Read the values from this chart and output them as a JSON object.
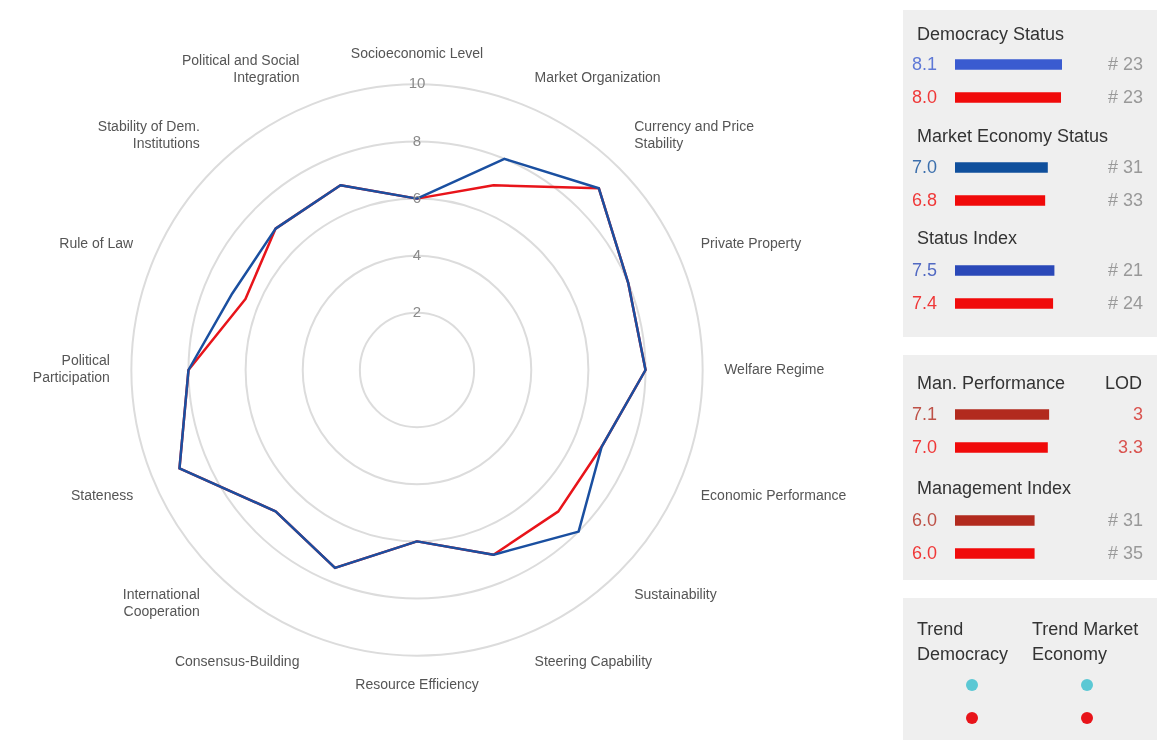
{
  "chart_data": [
    {
      "type": "radar",
      "categories": [
        "Socioeconomic Level",
        "Market Organization",
        "Currency and Price Stability",
        "Private Property",
        "Welfare Regime",
        "Economic Performance",
        "Sustainability",
        "Steering Capability",
        "Resource Efficiency",
        "Consensus-Building",
        "International Cooperation",
        "Stateness",
        "Political Participation",
        "Rule of Law",
        "Stability of Dem. Institutions",
        "Political and Social Integration"
      ],
      "series": [
        {
          "color": "#1a4fa0",
          "values": [
            6,
            8,
            9,
            8,
            8,
            7,
            8,
            7,
            6,
            7.5,
            7,
            9,
            8,
            7,
            7,
            7
          ]
        },
        {
          "color": "#e8141a",
          "values": [
            6,
            7,
            9,
            8,
            8,
            7,
            7,
            7,
            6,
            7.5,
            7,
            9,
            8,
            6.5,
            7,
            7
          ]
        }
      ],
      "ylim": [
        0,
        10
      ],
      "yticks": [
        2,
        4,
        6,
        8,
        10
      ],
      "grid": true,
      "legend": false
    },
    {
      "type": "bar",
      "orientation": "horizontal",
      "title": "Democracy Status",
      "categories": [
        null,
        null
      ],
      "values": [
        8.1,
        8.0
      ],
      "colors": [
        "#3a5bd0",
        "#f00a0a"
      ],
      "value_labels": [
        "8.1",
        "8.0"
      ],
      "tick_labels": false,
      "annotations": [
        "# 23",
        "# 23"
      ]
    },
    {
      "type": "bar",
      "orientation": "horizontal",
      "title": "Market Economy Status",
      "categories": [
        null,
        null
      ],
      "values": [
        7.0,
        6.8
      ],
      "colors": [
        "#0f4f9c",
        "#f00a0a"
      ],
      "value_labels": [
        "7.0",
        "6.8"
      ],
      "tick_labels": false,
      "annotations": [
        "# 31",
        "# 33"
      ]
    },
    {
      "type": "bar",
      "orientation": "horizontal",
      "title": "Status Index",
      "categories": [
        null,
        null
      ],
      "values": [
        7.5,
        7.4
      ],
      "colors": [
        "#2a48b8",
        "#f00a0a"
      ],
      "value_labels": [
        "7.5",
        "7.4"
      ],
      "tick_labels": false,
      "annotations": [
        "# 21",
        "# 24"
      ]
    },
    {
      "type": "bar",
      "orientation": "horizontal",
      "title": "Man. Performance",
      "categories": [
        null,
        null
      ],
      "values": [
        7.1,
        7.0
      ],
      "colors": [
        "#b22a1e",
        "#f00a0a"
      ],
      "value_labels": [
        "7.1",
        "7.0"
      ],
      "tick_labels": false,
      "annotations": [
        "LOD",
        "3",
        "3.3"
      ]
    },
    {
      "type": "bar",
      "orientation": "horizontal",
      "title": "Management Index",
      "categories": [
        null,
        null
      ],
      "values": [
        6.0,
        6.0
      ],
      "colors": [
        "#b22a1e",
        "#f00a0a"
      ],
      "value_labels": [
        "6.0",
        "6.0"
      ],
      "tick_labels": false,
      "annotations": [
        "# 31",
        "# 35"
      ]
    },
    {
      "type": "other",
      "annotations": [
        "Trend Democracy",
        "Trend Market Economy"
      ]
    }
  ]
}
